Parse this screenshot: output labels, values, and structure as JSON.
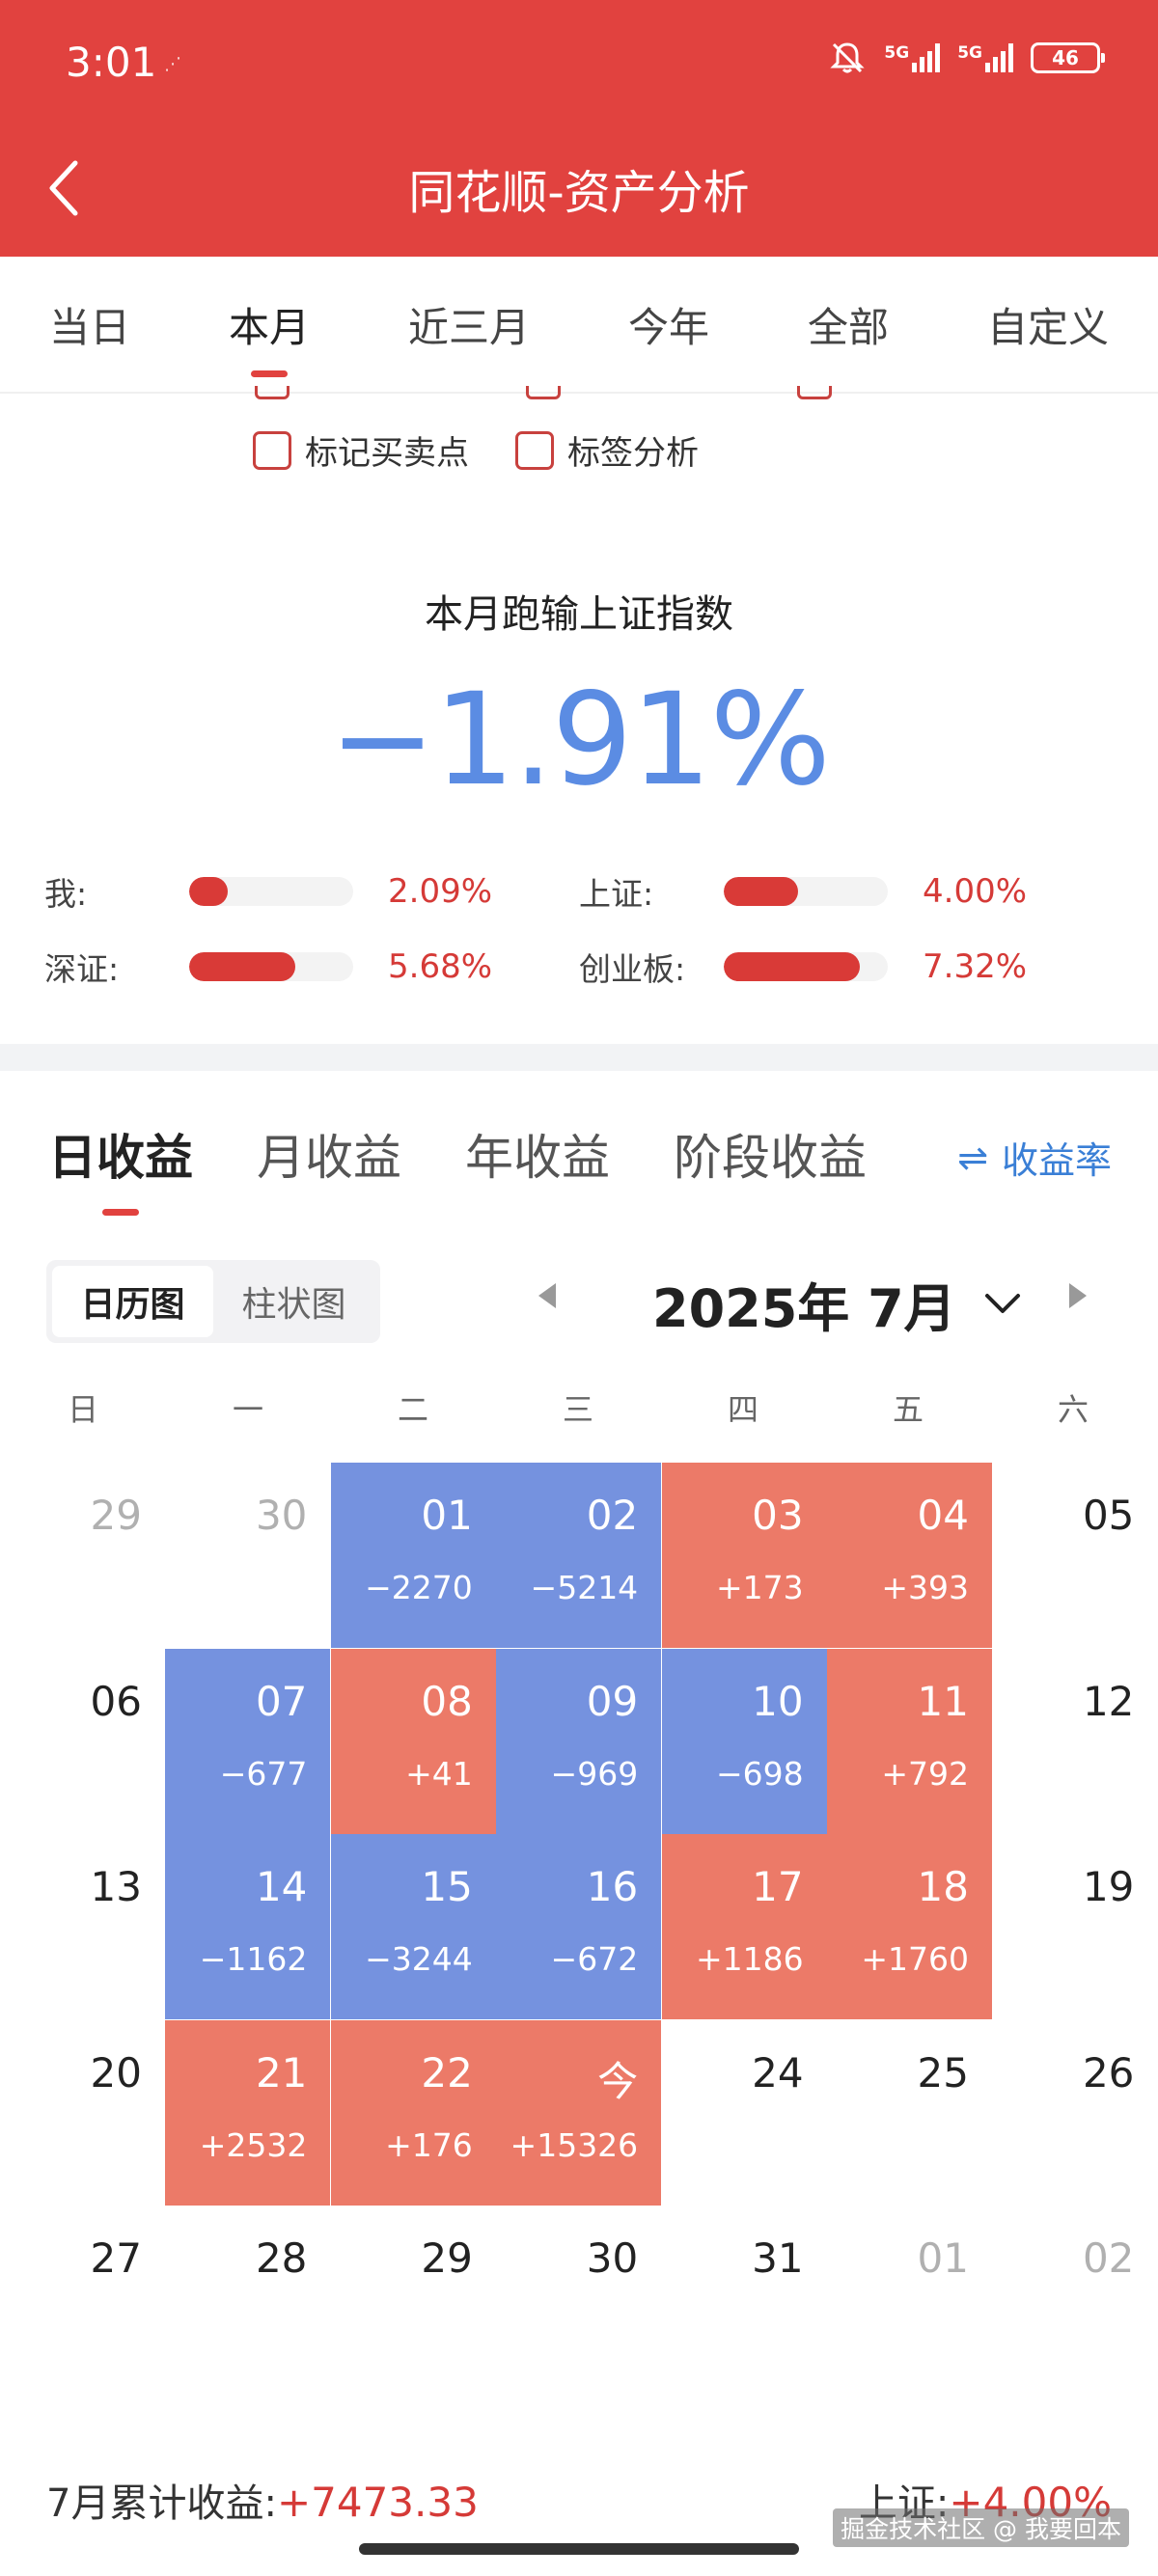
{
  "status_bar": {
    "time": "3:01",
    "network_1": "5G",
    "network_2": "5G",
    "battery": "46"
  },
  "header": {
    "title": "同花顺-资产分析"
  },
  "period_tabs": [
    "当日",
    "本月",
    "近三月",
    "今年",
    "全部",
    "自定义"
  ],
  "options": {
    "mark_trades": "标记买卖点",
    "tag_analysis": "标签分析"
  },
  "comparison": {
    "title": "本月跑输上证指数",
    "value": "−1.91%",
    "value_color": "#5b8ce3",
    "benchmarks": [
      {
        "label": "我:",
        "value": "2.09%",
        "pct": 2.09
      },
      {
        "label": "上证:",
        "value": "4.00%",
        "pct": 4.0
      },
      {
        "label": "深证:",
        "value": "5.68%",
        "pct": 5.68
      },
      {
        "label": "创业板:",
        "value": "7.32%",
        "pct": 7.32
      }
    ]
  },
  "profit_tabs": [
    "日收益",
    "月收益",
    "年收益",
    "阶段收益"
  ],
  "rate_toggle": {
    "icon": "⇌",
    "label": "收益率"
  },
  "view_toggle": {
    "calendar": "日历图",
    "bar": "柱状图"
  },
  "month": {
    "label": "2025年 7月"
  },
  "weekdays": [
    "日",
    "一",
    "二",
    "三",
    "四",
    "五",
    "六"
  ],
  "colors": {
    "gain": "#ec7a68",
    "loss": "#7592df",
    "brand": "#e1423f"
  },
  "calendar": [
    [
      {
        "d": "29",
        "muted": true
      },
      {
        "d": "30",
        "muted": true
      },
      {
        "d": "01",
        "a": "−2270",
        "t": "loss"
      },
      {
        "d": "02",
        "a": "−5214",
        "t": "loss"
      },
      {
        "d": "03",
        "a": "+173",
        "t": "gain"
      },
      {
        "d": "04",
        "a": "+393",
        "t": "gain"
      },
      {
        "d": "05"
      }
    ],
    [
      {
        "d": "06"
      },
      {
        "d": "07",
        "a": "−677",
        "t": "loss"
      },
      {
        "d": "08",
        "a": "+41",
        "t": "gain"
      },
      {
        "d": "09",
        "a": "−969",
        "t": "loss"
      },
      {
        "d": "10",
        "a": "−698",
        "t": "loss"
      },
      {
        "d": "11",
        "a": "+792",
        "t": "gain"
      },
      {
        "d": "12"
      }
    ],
    [
      {
        "d": "13"
      },
      {
        "d": "14",
        "a": "−1162",
        "t": "loss"
      },
      {
        "d": "15",
        "a": "−3244",
        "t": "loss"
      },
      {
        "d": "16",
        "a": "−672",
        "t": "loss"
      },
      {
        "d": "17",
        "a": "+1186",
        "t": "gain"
      },
      {
        "d": "18",
        "a": "+1760",
        "t": "gain"
      },
      {
        "d": "19"
      }
    ],
    [
      {
        "d": "20"
      },
      {
        "d": "21",
        "a": "+2532",
        "t": "gain"
      },
      {
        "d": "22",
        "a": "+176",
        "t": "gain"
      },
      {
        "d": "今",
        "a": "+15326",
        "t": "gain"
      },
      {
        "d": "24"
      },
      {
        "d": "25"
      },
      {
        "d": "26"
      }
    ],
    [
      {
        "d": "27"
      },
      {
        "d": "28"
      },
      {
        "d": "29"
      },
      {
        "d": "30"
      },
      {
        "d": "31"
      },
      {
        "d": "01",
        "muted": true
      },
      {
        "d": "02",
        "muted": true
      }
    ]
  ],
  "footer": {
    "month_label": "7月累计收益:",
    "month_value": "+7473.33",
    "index_label": "上证:",
    "index_value": "+4.00%"
  },
  "watermark": "掘金技术社区 @ 我要回本"
}
